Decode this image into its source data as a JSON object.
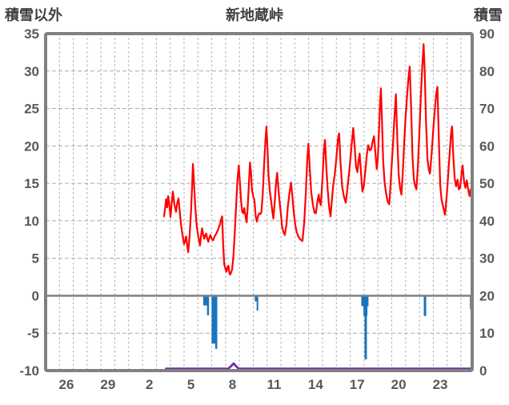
{
  "header": {
    "left_axis_title": "積雪以外",
    "chart_title": "新地蔵峠",
    "right_axis_title": "積雪"
  },
  "colors": {
    "red_line": "#ff0000",
    "blue_bars": "#1874be",
    "purple_line": "#7030a0",
    "axis_frame": "#808080",
    "zero_line": "#808080",
    "grid": "#ababab",
    "tick_text": "#595959"
  },
  "chart_data": {
    "type": "line",
    "title": "新地蔵峠",
    "left_axis": {
      "title": "積雪以外",
      "min": -10,
      "max": 35,
      "tick_step": 5,
      "ticks": [
        "35",
        "30",
        "25",
        "20",
        "15",
        "10",
        "5",
        "0",
        "-5",
        "-10"
      ],
      "tick_values": [
        35,
        30,
        25,
        20,
        15,
        10,
        5,
        0,
        -5,
        -10
      ]
    },
    "right_axis": {
      "title": "積雪",
      "min": 0,
      "max": 90,
      "tick_step": 10,
      "ticks": [
        "90",
        "80",
        "70",
        "60",
        "50",
        "40",
        "30",
        "20",
        "10",
        "0"
      ],
      "tick_values": [
        90,
        80,
        70,
        60,
        50,
        40,
        30,
        20,
        10,
        0
      ]
    },
    "x_axis": {
      "tick_labels": [
        "26",
        "29",
        "2",
        "5",
        "8",
        "11",
        "14",
        "17",
        "20",
        "23"
      ],
      "tick_slots": [
        1.5,
        4.5,
        7.5,
        10.5,
        13.5,
        16.5,
        19.5,
        22.5,
        25.5,
        28.5
      ],
      "gridline_slots_from": 1,
      "gridline_slots_to": 30,
      "total_slots": 30.81,
      "grid": true,
      "legend": "none"
    },
    "series": [
      {
        "name": "red_line",
        "axis": "left",
        "type": "line",
        "points": [
          [
            8.55,
            10.6
          ],
          [
            8.62,
            11.5
          ],
          [
            8.7,
            12.9
          ],
          [
            8.78,
            11.8
          ],
          [
            8.85,
            13.3
          ],
          [
            8.95,
            11.9
          ],
          [
            9.02,
            10.5
          ],
          [
            9.12,
            12.6
          ],
          [
            9.19,
            13.9
          ],
          [
            9.3,
            12.2
          ],
          [
            9.42,
            11.2
          ],
          [
            9.5,
            12.3
          ],
          [
            9.6,
            13.0
          ],
          [
            9.68,
            11.4
          ],
          [
            9.77,
            9.6
          ],
          [
            9.88,
            8.2
          ],
          [
            10.0,
            6.9
          ],
          [
            10.08,
            7.4
          ],
          [
            10.15,
            7.9
          ],
          [
            10.22,
            6.8
          ],
          [
            10.3,
            5.8
          ],
          [
            10.4,
            8.0
          ],
          [
            10.5,
            11.2
          ],
          [
            10.58,
            14.6
          ],
          [
            10.64,
            17.6
          ],
          [
            10.72,
            15.0
          ],
          [
            10.8,
            12.1
          ],
          [
            10.92,
            9.2
          ],
          [
            11.02,
            8.0
          ],
          [
            11.15,
            6.7
          ],
          [
            11.22,
            7.9
          ],
          [
            11.3,
            9.0
          ],
          [
            11.38,
            8.2
          ],
          [
            11.45,
            7.6
          ],
          [
            11.52,
            8.0
          ],
          [
            11.6,
            8.3
          ],
          [
            11.68,
            7.6
          ],
          [
            11.75,
            7.2
          ],
          [
            11.82,
            7.7
          ],
          [
            11.9,
            8.1
          ],
          [
            12.0,
            7.6
          ],
          [
            12.1,
            7.4
          ],
          [
            12.2,
            7.9
          ],
          [
            12.3,
            8.2
          ],
          [
            12.38,
            8.5
          ],
          [
            12.45,
            8.8
          ],
          [
            12.52,
            9.2
          ],
          [
            12.6,
            9.6
          ],
          [
            12.68,
            10.2
          ],
          [
            12.75,
            10.6
          ],
          [
            12.82,
            7.0
          ],
          [
            12.9,
            4.2
          ],
          [
            13.0,
            3.5
          ],
          [
            13.06,
            3.2
          ],
          [
            13.13,
            3.8
          ],
          [
            13.2,
            4.0
          ],
          [
            13.26,
            3.2
          ],
          [
            13.32,
            2.8
          ],
          [
            13.4,
            3.1
          ],
          [
            13.47,
            3.5
          ],
          [
            13.56,
            5.2
          ],
          [
            13.65,
            8.0
          ],
          [
            13.76,
            12.0
          ],
          [
            13.85,
            15.3
          ],
          [
            13.95,
            17.4
          ],
          [
            14.05,
            14.6
          ],
          [
            14.12,
            12.6
          ],
          [
            14.2,
            11.2
          ],
          [
            14.28,
            11.0
          ],
          [
            14.35,
            11.7
          ],
          [
            14.44,
            10.6
          ],
          [
            14.52,
            9.8
          ],
          [
            14.6,
            12.0
          ],
          [
            14.68,
            14.8
          ],
          [
            14.76,
            17.8
          ],
          [
            14.84,
            16.4
          ],
          [
            14.9,
            14.2
          ],
          [
            15.0,
            13.2
          ],
          [
            15.08,
            12.8
          ],
          [
            15.18,
            10.5
          ],
          [
            15.26,
            9.9
          ],
          [
            15.34,
            10.6
          ],
          [
            15.42,
            11.0
          ],
          [
            15.5,
            10.9
          ],
          [
            15.58,
            11.1
          ],
          [
            15.68,
            13.5
          ],
          [
            15.78,
            17.5
          ],
          [
            15.88,
            20.8
          ],
          [
            15.95,
            22.6
          ],
          [
            16.03,
            19.5
          ],
          [
            16.1,
            16.1
          ],
          [
            16.2,
            13.9
          ],
          [
            16.28,
            12.8
          ],
          [
            16.38,
            11.2
          ],
          [
            16.45,
            10.3
          ],
          [
            16.55,
            12.5
          ],
          [
            16.64,
            15.0
          ],
          [
            16.72,
            16.4
          ],
          [
            16.8,
            14.6
          ],
          [
            16.88,
            12.9
          ],
          [
            17.0,
            10.8
          ],
          [
            17.08,
            9.2
          ],
          [
            17.18,
            8.5
          ],
          [
            17.28,
            8.1
          ],
          [
            17.4,
            9.6
          ],
          [
            17.5,
            12.0
          ],
          [
            17.62,
            13.8
          ],
          [
            17.72,
            15.1
          ],
          [
            17.82,
            13.4
          ],
          [
            17.92,
            11.2
          ],
          [
            18.02,
            9.6
          ],
          [
            18.12,
            8.6
          ],
          [
            18.25,
            7.9
          ],
          [
            18.4,
            7.5
          ],
          [
            18.55,
            7.3
          ],
          [
            18.68,
            9.8
          ],
          [
            18.8,
            14.0
          ],
          [
            18.9,
            18.2
          ],
          [
            18.98,
            20.3
          ],
          [
            19.08,
            17.0
          ],
          [
            19.18,
            13.9
          ],
          [
            19.3,
            12.2
          ],
          [
            19.42,
            11.1
          ],
          [
            19.52,
            11.0
          ],
          [
            19.62,
            12.4
          ],
          [
            19.72,
            13.5
          ],
          [
            19.8,
            12.5
          ],
          [
            19.88,
            12.1
          ],
          [
            20.0,
            15.8
          ],
          [
            20.1,
            19.4
          ],
          [
            20.18,
            20.8
          ],
          [
            20.28,
            17.0
          ],
          [
            20.38,
            14.0
          ],
          [
            20.48,
            11.8
          ],
          [
            20.58,
            10.6
          ],
          [
            20.68,
            12.8
          ],
          [
            20.78,
            14.9
          ],
          [
            20.88,
            16.1
          ],
          [
            21.0,
            18.4
          ],
          [
            21.12,
            21.0
          ],
          [
            21.2,
            21.7
          ],
          [
            21.3,
            17.8
          ],
          [
            21.42,
            14.6
          ],
          [
            21.55,
            13.2
          ],
          [
            21.68,
            12.4
          ],
          [
            21.78,
            14.0
          ],
          [
            21.9,
            16.1
          ],
          [
            22.0,
            18.0
          ],
          [
            22.12,
            20.5
          ],
          [
            22.22,
            22.4
          ],
          [
            22.32,
            20.0
          ],
          [
            22.42,
            17.2
          ],
          [
            22.52,
            16.5
          ],
          [
            22.6,
            18.0
          ],
          [
            22.68,
            19.0
          ],
          [
            22.78,
            16.4
          ],
          [
            22.88,
            13.9
          ],
          [
            22.98,
            14.6
          ],
          [
            23.1,
            16.8
          ],
          [
            23.2,
            18.8
          ],
          [
            23.3,
            20.1
          ],
          [
            23.42,
            19.4
          ],
          [
            23.52,
            19.6
          ],
          [
            23.62,
            20.6
          ],
          [
            23.72,
            21.3
          ],
          [
            23.82,
            19.0
          ],
          [
            23.92,
            16.9
          ],
          [
            24.0,
            18.5
          ],
          [
            24.08,
            22.0
          ],
          [
            24.16,
            26.0
          ],
          [
            24.22,
            27.7
          ],
          [
            24.3,
            23.0
          ],
          [
            24.38,
            18.0
          ],
          [
            24.48,
            15.2
          ],
          [
            24.58,
            13.8
          ],
          [
            24.7,
            12.6
          ],
          [
            24.82,
            12.2
          ],
          [
            24.92,
            15.0
          ],
          [
            25.02,
            18.2
          ],
          [
            25.1,
            20.5
          ],
          [
            25.2,
            24.0
          ],
          [
            25.3,
            26.9
          ],
          [
            25.4,
            21.0
          ],
          [
            25.5,
            16.2
          ],
          [
            25.6,
            14.4
          ],
          [
            25.7,
            13.5
          ],
          [
            25.8,
            16.5
          ],
          [
            25.9,
            20.5
          ],
          [
            26.0,
            23.9
          ],
          [
            26.1,
            26.5
          ],
          [
            26.2,
            28.9
          ],
          [
            26.3,
            30.6
          ],
          [
            26.4,
            25.0
          ],
          [
            26.5,
            18.5
          ],
          [
            26.6,
            15.5
          ],
          [
            26.7,
            14.6
          ],
          [
            26.78,
            14.2
          ],
          [
            26.88,
            17.0
          ],
          [
            27.0,
            22.0
          ],
          [
            27.1,
            26.5
          ],
          [
            27.2,
            30.5
          ],
          [
            27.3,
            33.6
          ],
          [
            27.38,
            30.0
          ],
          [
            27.48,
            23.0
          ],
          [
            27.58,
            18.3
          ],
          [
            27.68,
            16.8
          ],
          [
            27.76,
            16.3
          ],
          [
            27.88,
            19.0
          ],
          [
            28.0,
            22.2
          ],
          [
            28.1,
            24.6
          ],
          [
            28.2,
            26.8
          ],
          [
            28.3,
            27.9
          ],
          [
            28.4,
            21.0
          ],
          [
            28.5,
            14.8
          ],
          [
            28.6,
            12.8
          ],
          [
            28.72,
            11.8
          ],
          [
            28.85,
            10.8
          ],
          [
            29.0,
            14.0
          ],
          [
            29.1,
            16.8
          ],
          [
            29.2,
            19.5
          ],
          [
            29.3,
            22.0
          ],
          [
            29.36,
            22.6
          ],
          [
            29.45,
            18.5
          ],
          [
            29.55,
            15.6
          ],
          [
            29.65,
            14.6
          ],
          [
            29.75,
            15.5
          ],
          [
            29.85,
            14.2
          ],
          [
            29.95,
            14.5
          ],
          [
            30.05,
            16.5
          ],
          [
            30.12,
            17.4
          ],
          [
            30.22,
            15.3
          ],
          [
            30.32,
            14.4
          ],
          [
            30.42,
            15.4
          ],
          [
            30.52,
            14.2
          ],
          [
            30.62,
            13.3
          ],
          [
            30.7,
            14.2
          ],
          [
            30.78,
            13.6
          ]
        ]
      },
      {
        "name": "blue_bars",
        "axis": "left",
        "type": "bar",
        "bars": [
          {
            "u": 11.53,
            "w": 5,
            "v": -1.3
          },
          {
            "u": 11.73,
            "w": 2.5,
            "v": -2.6
          },
          {
            "u": 12.19,
            "w": 7,
            "v": -6.4
          },
          {
            "u": 12.32,
            "w": 2.5,
            "v": -7.1
          },
          {
            "u": 15.22,
            "w": 4,
            "v": -0.75
          },
          {
            "u": 15.3,
            "w": 2,
            "v": -2.0
          },
          {
            "u": 23.06,
            "w": 9,
            "v": -1.4
          },
          {
            "u": 23.1,
            "w": 5,
            "v": -2.7
          },
          {
            "u": 23.12,
            "w": 3,
            "v": -8.5
          },
          {
            "u": 27.4,
            "w": 3,
            "v": -2.7
          },
          {
            "u": 30.75,
            "w": 3.5,
            "v": -1.8
          }
        ]
      },
      {
        "name": "purple_line",
        "axis": "right",
        "type": "line",
        "points": [
          [
            8.7,
            0.5
          ],
          [
            13.2,
            0.5
          ],
          [
            13.4,
            1.2
          ],
          [
            13.58,
            1.9
          ],
          [
            13.75,
            1.2
          ],
          [
            13.95,
            0.5
          ],
          [
            30.81,
            0.5
          ]
        ]
      }
    ]
  }
}
